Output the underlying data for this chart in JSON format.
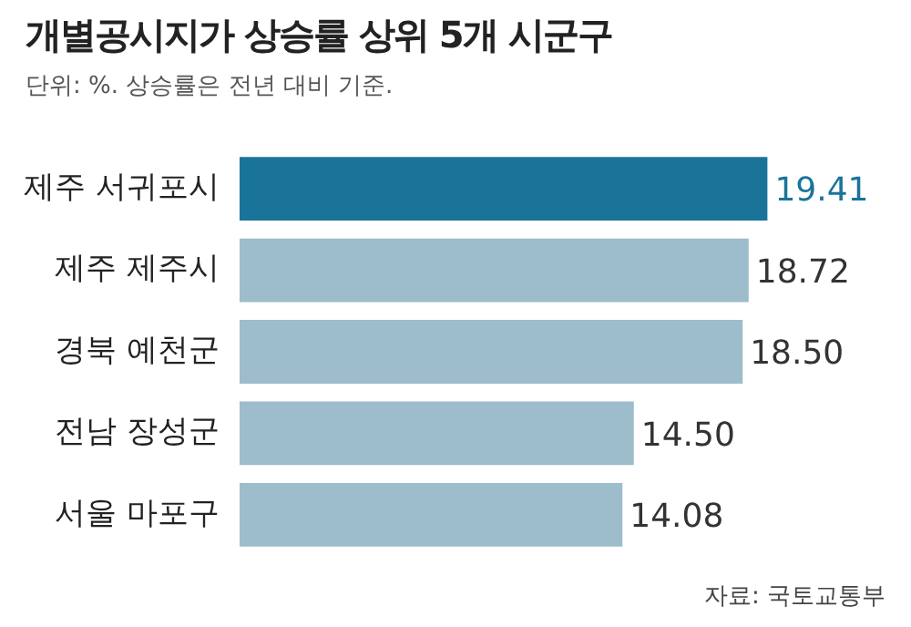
{
  "chart_data": {
    "type": "bar",
    "orientation": "horizontal",
    "title": "개별공시지가 상승률 상위 5개 시군구",
    "subtitle": "단위: %. 상승률은 전년 대비 기준.",
    "categories": [
      "제주 서귀포시",
      "제주 제주시",
      "경북 예천군",
      "전남 장성군",
      "서울 마포구"
    ],
    "values": [
      19.41,
      18.72,
      18.5,
      14.5,
      14.08
    ],
    "colors": [
      "#1a7499",
      "#9dbccc",
      "#9dbccc",
      "#9dbccc",
      "#9dbccc"
    ],
    "value_labels": [
      "19.41",
      "18.72",
      "18.50",
      "14.50",
      "14.08"
    ],
    "legend": false,
    "annotations": [
      "자료: 국토교통부"
    ]
  }
}
